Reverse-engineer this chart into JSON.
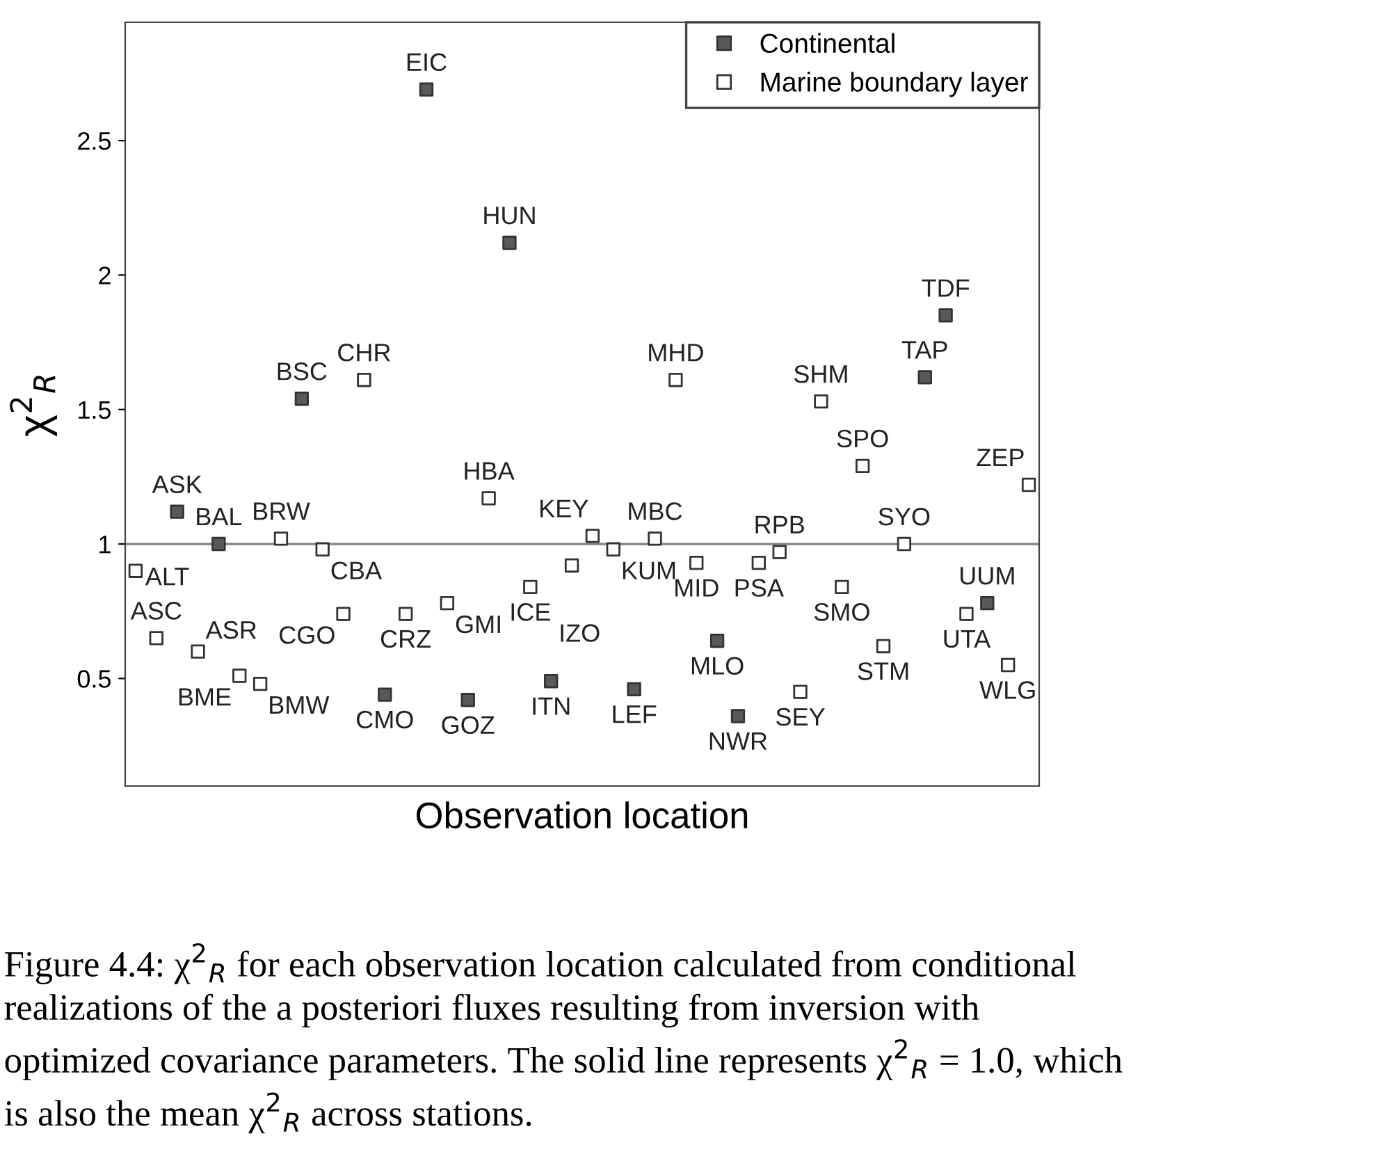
{
  "chart_data": {
    "type": "scatter",
    "xlabel": "Observation location",
    "ylabel": "χ$^{2}$$_{R}$",
    "categories": [
      null,
      null,
      null,
      null,
      null,
      null,
      null,
      null,
      null,
      null,
      null,
      null,
      null,
      null,
      null,
      null,
      null,
      null,
      null,
      null,
      null,
      null,
      null,
      null,
      null,
      null,
      null,
      null,
      null,
      null,
      null,
      null,
      null,
      null,
      null,
      null,
      null,
      null,
      null,
      null,
      null,
      null,
      null,
      null
    ],
    "series": [
      {
        "name": "Continental",
        "color": "#595959",
        "values": [
          null,
          null,
          1.12,
          null,
          1.0,
          null,
          null,
          null,
          1.54,
          null,
          null,
          null,
          0.44,
          null,
          2.69,
          null,
          0.42,
          null,
          2.12,
          null,
          0.49,
          null,
          null,
          null,
          0.46,
          null,
          null,
          null,
          0.64,
          0.36,
          null,
          null,
          null,
          null,
          null,
          null,
          null,
          null,
          1.62,
          1.85,
          null,
          0.78,
          null,
          null
        ]
      },
      {
        "name": "Marine boundary layer",
        "color": "#ffffff",
        "values": [
          0.9,
          0.65,
          null,
          0.6,
          null,
          0.51,
          0.48,
          1.02,
          null,
          0.98,
          0.74,
          1.61,
          null,
          0.74,
          null,
          0.78,
          null,
          1.17,
          null,
          0.84,
          null,
          0.92,
          1.03,
          0.98,
          null,
          1.02,
          1.61,
          0.93,
          null,
          null,
          0.93,
          0.97,
          0.45,
          1.53,
          0.84,
          1.29,
          0.62,
          1.0,
          null,
          null,
          0.74,
          null,
          0.55,
          1.22
        ]
      }
    ],
    "ylim": [
      0.1,
      2.94
    ],
    "yticks": [
      0.5,
      1,
      1.5,
      2,
      2.5
    ],
    "tick_labels": "y",
    "marker": "square",
    "legend": "top right",
    "grid": false,
    "ref_lines": [
      {
        "axis": "y",
        "value": 1,
        "color": "#808080"
      }
    ],
    "annotations": [
      "ALT",
      "ASC",
      "ASK",
      "ASR",
      "BAL",
      "BME",
      "BMW",
      "BRW",
      "BSC",
      "CBA",
      "CGO",
      "CHR",
      "CMO",
      "CRZ",
      "EIC",
      "GMI",
      "GOZ",
      "HBA",
      "HUN",
      "ICE",
      "ITN",
      "IZO",
      "KEY",
      "KUM",
      "LEF",
      "MBC",
      "MHD",
      "MID",
      "MLO",
      "NWR",
      "PSA",
      "RPB",
      "SEY",
      "SHM",
      "SMO",
      "SPO",
      "STM",
      "SYO",
      "TAP",
      "TDF",
      "UTA",
      "UUM",
      "WLG",
      "ZEP",
      "Figure 4.4: χ$^{2}$$_{R}$ for each observation location calculated from conditional realizations of the a posteriori fluxes resulting from inversion with optimized covariance parameters. The solid line represents χ$^{2}$$_{R}$ = 1.0, which is also the mean χ$^{2}$$_{R}$ across stations."
    ]
  }
}
